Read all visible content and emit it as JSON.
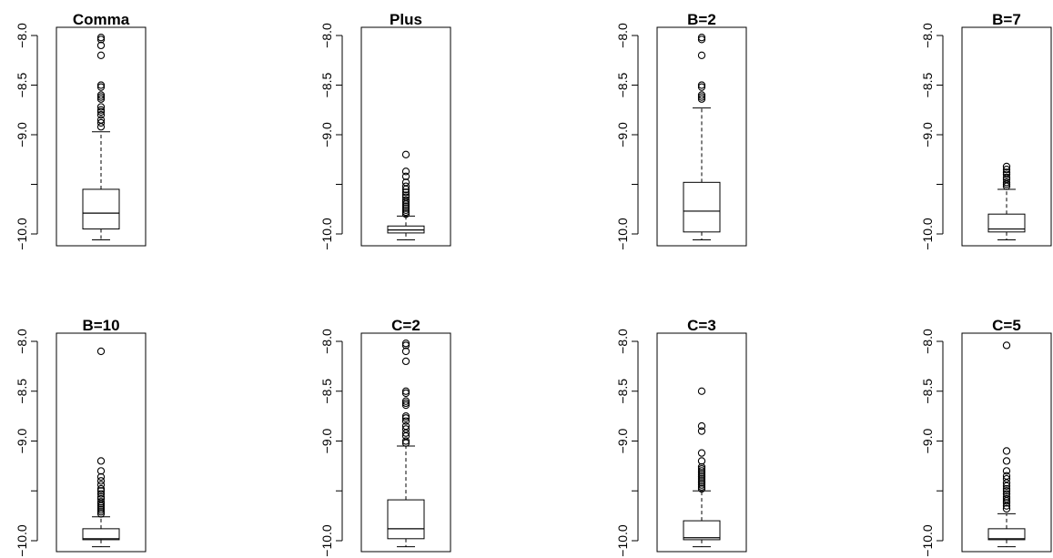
{
  "chart_data": [
    {
      "type": "boxplot",
      "title": "Comma",
      "ylim": [
        -10.05,
        -7.97
      ],
      "yticks": [
        -10.0,
        -9.5,
        -9.0,
        -8.5,
        -8.0
      ],
      "yticklabels": [
        "-10.0",
        "",
        "-9.0",
        "-8.5",
        "-8.0"
      ],
      "box": {
        "lower_whisker": -10.06,
        "q1": -9.95,
        "median": -9.79,
        "q3": -9.55,
        "upper_whisker": -8.97
      },
      "outliers": [
        -8.02,
        -8.04,
        -8.1,
        -8.2,
        -8.5,
        -8.52,
        -8.6,
        -8.62,
        -8.64,
        -8.72,
        -8.75,
        -8.77,
        -8.8,
        -8.85,
        -8.88,
        -8.92
      ]
    },
    {
      "type": "boxplot",
      "title": "Plus",
      "ylim": [
        -10.05,
        -7.97
      ],
      "yticks": [
        -10.0,
        -9.5,
        -9.0,
        -8.5,
        -8.0
      ],
      "yticklabels": [
        "-10.0",
        "",
        "-9.0",
        "-8.5",
        "-8.0"
      ],
      "box": {
        "lower_whisker": -10.06,
        "q1": -9.99,
        "median": -9.96,
        "q3": -9.92,
        "upper_whisker": -9.82
      },
      "outliers": [
        -9.2,
        -9.37,
        -9.42,
        -9.48,
        -9.52,
        -9.55,
        -9.58,
        -9.61,
        -9.63,
        -9.66,
        -9.68,
        -9.7,
        -9.72,
        -9.74,
        -9.76,
        -9.78,
        -9.8
      ]
    },
    {
      "type": "boxplot",
      "title": "B=2",
      "ylim": [
        -10.05,
        -7.97
      ],
      "yticks": [
        -10.0,
        -9.5,
        -9.0,
        -8.5,
        -8.0
      ],
      "yticklabels": [
        "-10.0",
        "",
        "-9.0",
        "-8.5",
        "-8.0"
      ],
      "box": {
        "lower_whisker": -10.06,
        "q1": -9.98,
        "median": -9.77,
        "q3": -9.48,
        "upper_whisker": -8.73
      },
      "outliers": [
        -8.02,
        -8.04,
        -8.2,
        -8.5,
        -8.52,
        -8.6,
        -8.62,
        -8.64
      ]
    },
    {
      "type": "boxplot",
      "title": "B=7",
      "ylim": [
        -10.05,
        -7.97
      ],
      "yticks": [
        -10.0,
        -9.5,
        -9.0,
        -8.5,
        -8.0
      ],
      "yticklabels": [
        "-10.0",
        "",
        "-9.0",
        "-8.5",
        "-8.0"
      ],
      "box": {
        "lower_whisker": -10.06,
        "q1": -9.98,
        "median": -9.95,
        "q3": -9.8,
        "upper_whisker": -9.55
      },
      "outliers": [
        -9.32,
        -9.35,
        -9.38,
        -9.4,
        -9.43,
        -9.45,
        -9.48,
        -9.5,
        -9.52
      ]
    },
    {
      "type": "boxplot",
      "title": "B=10",
      "ylim": [
        -10.05,
        -7.97
      ],
      "yticks": [
        -10.0,
        -9.5,
        -9.0,
        -8.5,
        -8.0
      ],
      "yticklabels": [
        "-10.0",
        "",
        "-9.0",
        "-8.5",
        "-8.0"
      ],
      "box": {
        "lower_whisker": -10.06,
        "q1": -9.99,
        "median": -9.98,
        "q3": -9.88,
        "upper_whisker": -9.76
      },
      "outliers": [
        -8.1,
        -9.2,
        -9.3,
        -9.36,
        -9.4,
        -9.44,
        -9.48,
        -9.5,
        -9.53,
        -9.56,
        -9.58,
        -9.61,
        -9.63,
        -9.65,
        -9.67,
        -9.69,
        -9.71,
        -9.73
      ]
    },
    {
      "type": "boxplot",
      "title": "C=2",
      "ylim": [
        -10.05,
        -7.97
      ],
      "yticks": [
        -10.0,
        -9.5,
        -9.0,
        -8.5,
        -8.0
      ],
      "yticklabels": [
        "-10.0",
        "",
        "-9.0",
        "-8.5",
        "-8.0"
      ],
      "box": {
        "lower_whisker": -10.06,
        "q1": -9.98,
        "median": -9.88,
        "q3": -9.59,
        "upper_whisker": -9.05
      },
      "outliers": [
        -8.02,
        -8.04,
        -8.1,
        -8.2,
        -8.5,
        -8.52,
        -8.6,
        -8.62,
        -8.64,
        -8.75,
        -8.77,
        -8.8,
        -8.85,
        -8.88,
        -8.92,
        -8.95,
        -9.0,
        -9.02
      ]
    },
    {
      "type": "boxplot",
      "title": "C=3",
      "ylim": [
        -10.05,
        -7.97
      ],
      "yticks": [
        -10.0,
        -9.5,
        -9.0,
        -8.5,
        -8.0
      ],
      "yticklabels": [
        "-10.0",
        "",
        "-9.0",
        "-8.5",
        "-8.0"
      ],
      "box": {
        "lower_whisker": -10.06,
        "q1": -9.99,
        "median": -9.97,
        "q3": -9.8,
        "upper_whisker": -9.5
      },
      "outliers": [
        -8.5,
        -8.85,
        -8.9,
        -9.12,
        -9.2,
        -9.26,
        -9.28,
        -9.3,
        -9.32,
        -9.34,
        -9.36,
        -9.38,
        -9.4,
        -9.42,
        -9.44,
        -9.46,
        -9.48
      ]
    },
    {
      "type": "boxplot",
      "title": "C=5",
      "ylim": [
        -10.05,
        -7.97
      ],
      "yticks": [
        -10.0,
        -9.5,
        -9.0,
        -8.5,
        -8.0
      ],
      "yticklabels": [
        "-10.0",
        "",
        "-9.0",
        "-8.5",
        "-8.0"
      ],
      "box": {
        "lower_whisker": -10.06,
        "q1": -9.99,
        "median": -9.98,
        "q3": -9.88,
        "upper_whisker": -9.73
      },
      "outliers": [
        -8.04,
        -9.1,
        -9.2,
        -9.3,
        -9.35,
        -9.38,
        -9.42,
        -9.45,
        -9.48,
        -9.5,
        -9.53,
        -9.56,
        -9.58,
        -9.6,
        -9.62,
        -9.65,
        -9.68
      ]
    }
  ]
}
